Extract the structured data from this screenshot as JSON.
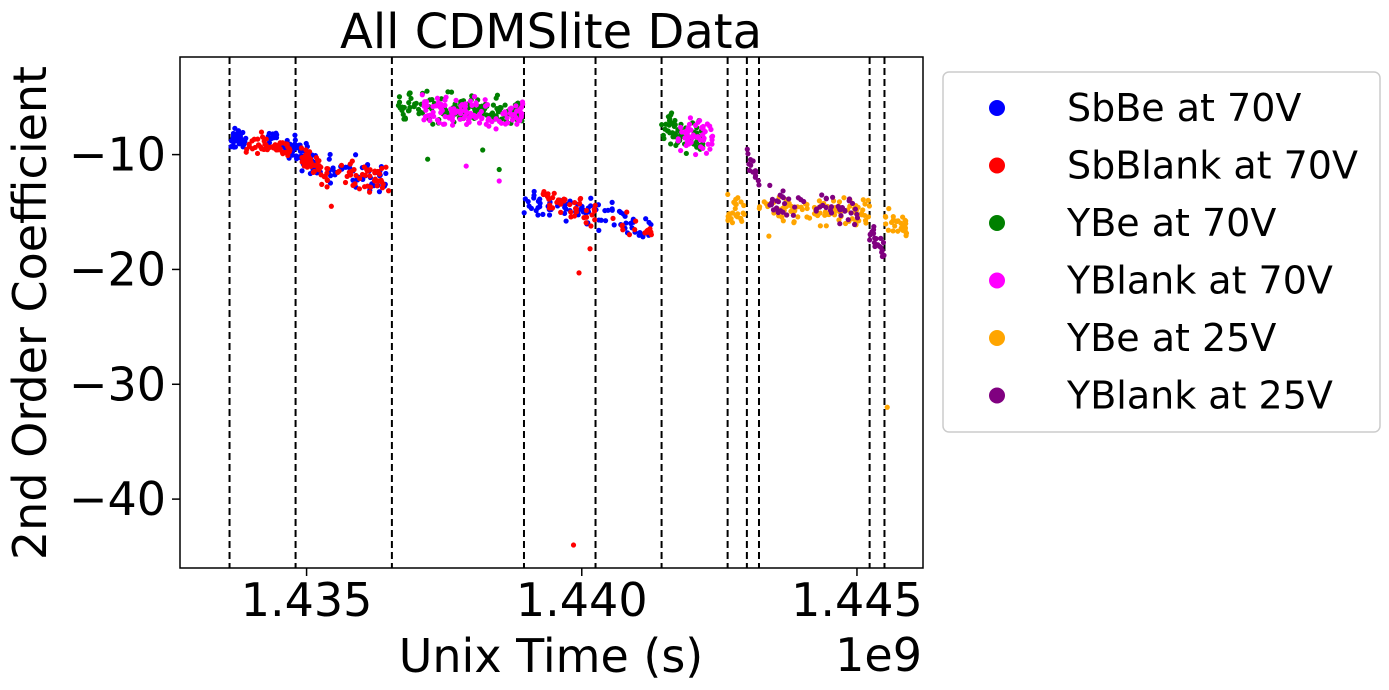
{
  "chart_data": {
    "type": "scatter",
    "title": "All CDMSlite Data",
    "xlabel": "Unix Time (s)",
    "ylabel": "2nd Order Coefficient",
    "x_offset_label": "1e9",
    "xlim": [
      1.4327,
      1.4462
    ],
    "ylim": [
      -46.0,
      -1.5
    ],
    "x_ticks": [
      1.435,
      1.44,
      1.445
    ],
    "x_tick_labels": [
      "1.435",
      "1.440",
      "1.445"
    ],
    "y_ticks": [
      -10,
      -20,
      -30,
      -40
    ],
    "y_tick_labels": [
      "−10",
      "−20",
      "−30",
      "−40"
    ],
    "grid": false,
    "legend_position": "outside-right",
    "vlines_dashed": [
      1.4336,
      1.4348,
      1.43655,
      1.43895,
      1.44025,
      1.44145,
      1.44265,
      1.443,
      1.44322,
      1.44523,
      1.4455
    ],
    "series": [
      {
        "name": "SbBe at 70V",
        "color": "#0000ff",
        "clusters": [
          {
            "x": [
              1.4336,
              1.4339
            ],
            "y": [
              -8.7,
              -8.6
            ],
            "n": 40,
            "spread": 0.8
          },
          {
            "x": [
              1.4343,
              1.4348
            ],
            "y": [
              -8.8,
              -9.4
            ],
            "n": 30,
            "spread": 0.9
          },
          {
            "x": [
              1.4348,
              1.43525
            ],
            "y": [
              -9.8,
              -10.9
            ],
            "n": 45,
            "spread": 1.1
          },
          {
            "x": [
              1.4354,
              1.43645
            ],
            "y": [
              -11.0,
              -12.3
            ],
            "n": 45,
            "spread": 1.3
          },
          {
            "x": [
              1.43895,
              1.4402
            ],
            "y": [
              -14.2,
              -14.9
            ],
            "n": 55,
            "spread": 1.0
          },
          {
            "x": [
              1.44025,
              1.4413
            ],
            "y": [
              -15.1,
              -16.5
            ],
            "n": 35,
            "spread": 1.2
          }
        ],
        "points": []
      },
      {
        "name": "SbBlank at 70V",
        "color": "#ff0000",
        "clusters": [
          {
            "x": [
              1.4339,
              1.4347
            ],
            "y": [
              -8.9,
              -9.6
            ],
            "n": 50,
            "spread": 0.8
          },
          {
            "x": [
              1.4349,
              1.4354
            ],
            "y": [
              -10.4,
              -11.4
            ],
            "n": 45,
            "spread": 1.1
          },
          {
            "x": [
              1.43555,
              1.4365
            ],
            "y": [
              -11.3,
              -12.3
            ],
            "n": 45,
            "spread": 1.2
          },
          {
            "x": [
              1.4393,
              1.44025
            ],
            "y": [
              -13.7,
              -15.3
            ],
            "n": 45,
            "spread": 1.0
          },
          {
            "x": [
              1.4404,
              1.4413
            ],
            "y": [
              -15.8,
              -16.6
            ],
            "n": 15,
            "spread": 1.0
          }
        ],
        "points": [
          {
            "x": 1.43985,
            "y": -44.0
          },
          {
            "x": 1.43995,
            "y": -20.3
          },
          {
            "x": 1.44015,
            "y": -18.2
          },
          {
            "x": 1.43545,
            "y": -14.5
          }
        ]
      },
      {
        "name": "YBe at 70V",
        "color": "#008000",
        "clusters": [
          {
            "x": [
              1.43665,
              1.43895
            ],
            "y": [
              -5.9,
              -6.4
            ],
            "n": 150,
            "spread": 1.2
          },
          {
            "x": [
              1.44145,
              1.4422
            ],
            "y": [
              -7.7,
              -8.4
            ],
            "n": 70,
            "spread": 1.3
          }
        ],
        "points": [
          {
            "x": 1.4372,
            "y": -10.4
          },
          {
            "x": 1.4385,
            "y": -11.3
          },
          {
            "x": 1.4382,
            "y": -9.6
          },
          {
            "x": 1.4419,
            "y": -9.9
          }
        ]
      },
      {
        "name": "YBlank at 70V",
        "color": "#ff00ff",
        "clusters": [
          {
            "x": [
              1.43705,
              1.43895
            ],
            "y": [
              -6.2,
              -6.5
            ],
            "n": 120,
            "spread": 1.1
          },
          {
            "x": [
              1.44175,
              1.4424
            ],
            "y": [
              -8.2,
              -8.6
            ],
            "n": 50,
            "spread": 1.3
          }
        ],
        "points": [
          {
            "x": 1.4385,
            "y": -12.3
          },
          {
            "x": 1.4379,
            "y": -11.0
          }
        ]
      },
      {
        "name": "YBe at 25V",
        "color": "#ffa500",
        "clusters": [
          {
            "x": [
              1.44265,
              1.443
            ],
            "y": [
              -14.7,
              -14.9
            ],
            "n": 25,
            "spread": 1.3
          },
          {
            "x": [
              1.44322,
              1.44523
            ],
            "y": [
              -14.6,
              -15.0
            ],
            "n": 100,
            "spread": 1.3
          },
          {
            "x": [
              1.4455,
              1.4459
            ],
            "y": [
              -15.7,
              -16.3
            ],
            "n": 30,
            "spread": 1.1
          }
        ],
        "points": [
          {
            "x": 1.44555,
            "y": -32.0
          },
          {
            "x": 1.4434,
            "y": -17.1
          }
        ]
      },
      {
        "name": "YBlank at 25V",
        "color": "#800080",
        "clusters": [
          {
            "x": [
              1.443,
              1.44322
            ],
            "y": [
              -10.3,
              -12.2
            ],
            "n": 15,
            "spread": 1.0
          },
          {
            "x": [
              1.4434,
              1.4451
            ],
            "y": [
              -14.1,
              -14.9
            ],
            "n": 55,
            "spread": 1.2
          },
          {
            "x": [
              1.44523,
              1.4455
            ],
            "y": [
              -16.8,
              -18.5
            ],
            "n": 20,
            "spread": 1.1
          }
        ],
        "points": []
      }
    ]
  }
}
